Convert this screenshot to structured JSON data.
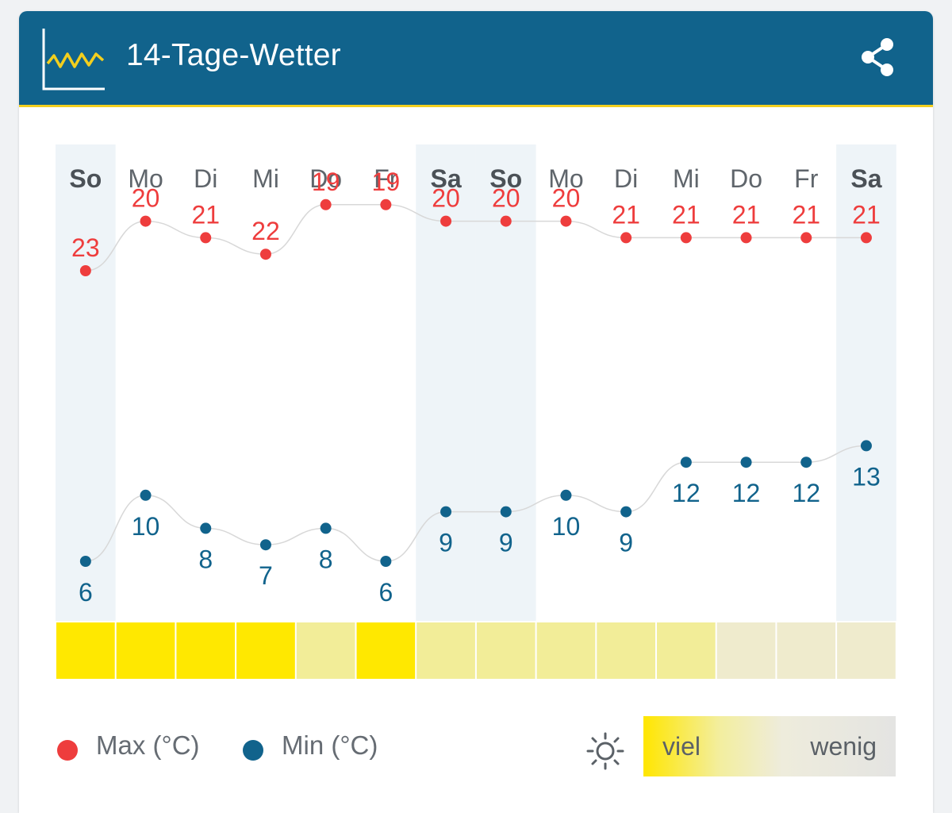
{
  "header": {
    "title": "14-Tage-Wetter",
    "colors": {
      "bar": "#11638c",
      "accent": "#f2cf1e"
    },
    "icons": {
      "left": "line-chart-icon",
      "right": "share-icon"
    }
  },
  "chart_data": {
    "type": "line",
    "days": [
      "So",
      "Mo",
      "Di",
      "Mi",
      "Do",
      "Fr",
      "Sa",
      "So",
      "Mo",
      "Di",
      "Mi",
      "Do",
      "Fr",
      "Sa"
    ],
    "weekend": [
      true,
      false,
      false,
      false,
      false,
      false,
      true,
      true,
      false,
      false,
      false,
      false,
      false,
      true
    ],
    "series": [
      {
        "name": "Max (°C)",
        "color": "#ee3d3d",
        "values": [
          23,
          20,
          21,
          22,
          19,
          19,
          20,
          20,
          20,
          21,
          21,
          21,
          21,
          21
        ]
      },
      {
        "name": "Min (°C)",
        "color": "#11638c",
        "values": [
          6,
          10,
          8,
          7,
          8,
          6,
          9,
          9,
          10,
          9,
          12,
          12,
          12,
          13
        ]
      }
    ],
    "sunshine": {
      "values": [
        5,
        5,
        5,
        5,
        3,
        5,
        3,
        3,
        3,
        3,
        3,
        1,
        1,
        1
      ],
      "colors": {
        "5": "#ffe800",
        "3": "#f2ed98",
        "1": "#efebcd"
      }
    },
    "grid": false
  },
  "legend": {
    "max_label": "Max (°C)",
    "min_label": "Min (°C)",
    "sun_icon": "sun-icon",
    "sun_high": "viel",
    "sun_low": "wenig"
  }
}
